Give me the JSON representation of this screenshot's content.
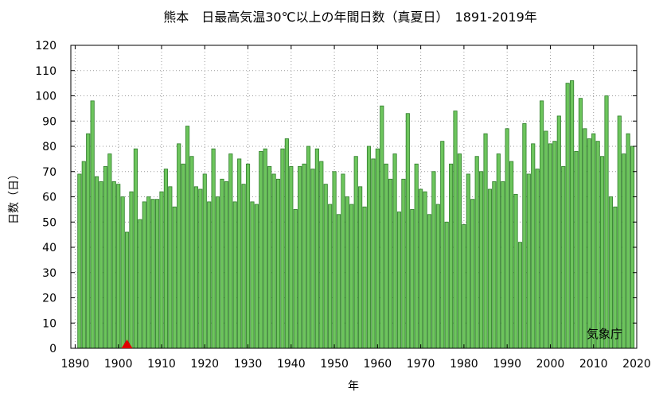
{
  "chart_data": {
    "type": "bar",
    "title": "熊本　日最高気温30℃以上の年間日数（真夏日）　1891-2019年",
    "xlabel": "年",
    "ylabel": "日数（日）",
    "source": "気象庁",
    "xlim": [
      1889,
      2020
    ],
    "ylim": [
      0,
      120
    ],
    "x_ticks": [
      "1890",
      "1900",
      "1910",
      "1920",
      "1930",
      "1940",
      "1950",
      "1960",
      "1970",
      "1980",
      "1990",
      "2000",
      "2010",
      "2020"
    ],
    "y_ticks": [
      "0",
      "10",
      "20",
      "30",
      "40",
      "50",
      "60",
      "70",
      "80",
      "90",
      "100",
      "110",
      "120"
    ],
    "grid": true,
    "bar_color": "#6dc55d",
    "bar_edge_color": "#2f7d2a",
    "marker": {
      "year": 1902,
      "value": 0,
      "shape": "triangle",
      "color": "#e00000"
    },
    "years": [
      1891,
      1892,
      1893,
      1894,
      1895,
      1896,
      1897,
      1898,
      1899,
      1900,
      1901,
      1902,
      1903,
      1904,
      1905,
      1906,
      1907,
      1908,
      1909,
      1910,
      1911,
      1912,
      1913,
      1914,
      1915,
      1916,
      1917,
      1918,
      1919,
      1920,
      1921,
      1922,
      1923,
      1924,
      1925,
      1926,
      1927,
      1928,
      1929,
      1930,
      1931,
      1932,
      1933,
      1934,
      1935,
      1936,
      1937,
      1938,
      1939,
      1940,
      1941,
      1942,
      1943,
      1944,
      1945,
      1946,
      1947,
      1948,
      1949,
      1950,
      1951,
      1952,
      1953,
      1954,
      1955,
      1956,
      1957,
      1958,
      1959,
      1960,
      1961,
      1962,
      1963,
      1964,
      1965,
      1966,
      1967,
      1968,
      1969,
      1970,
      1971,
      1972,
      1973,
      1974,
      1975,
      1976,
      1977,
      1978,
      1979,
      1980,
      1981,
      1982,
      1983,
      1984,
      1985,
      1986,
      1987,
      1988,
      1989,
      1990,
      1991,
      1992,
      1993,
      1994,
      1995,
      1996,
      1997,
      1998,
      1999,
      2000,
      2001,
      2002,
      2003,
      2004,
      2005,
      2006,
      2007,
      2008,
      2009,
      2010,
      2011,
      2012,
      2013,
      2014,
      2015,
      2016,
      2017,
      2018,
      2019
    ],
    "values": [
      69,
      74,
      85,
      98,
      68,
      66,
      72,
      77,
      66,
      65,
      60,
      46,
      62,
      79,
      51,
      58,
      60,
      59,
      59,
      62,
      71,
      64,
      56,
      81,
      73,
      88,
      76,
      64,
      63,
      69,
      58,
      79,
      60,
      67,
      66,
      77,
      58,
      75,
      65,
      73,
      58,
      57,
      78,
      79,
      72,
      69,
      67,
      79,
      83,
      72,
      55,
      72,
      73,
      80,
      71,
      79,
      74,
      65,
      57,
      70,
      53,
      69,
      60,
      57,
      76,
      64,
      56,
      80,
      75,
      79,
      96,
      73,
      67,
      77,
      54,
      67,
      93,
      55,
      73,
      63,
      62,
      53,
      70,
      57,
      82,
      50,
      73,
      94,
      77,
      49,
      69,
      59,
      76,
      70,
      85,
      63,
      66,
      77,
      66,
      87,
      74,
      61,
      42,
      89,
      69,
      81,
      71,
      98,
      86,
      81,
      82,
      92,
      72,
      105,
      106,
      78,
      99,
      87,
      83,
      85,
      82,
      76,
      100,
      60,
      56,
      92,
      77,
      85,
      80
    ]
  }
}
